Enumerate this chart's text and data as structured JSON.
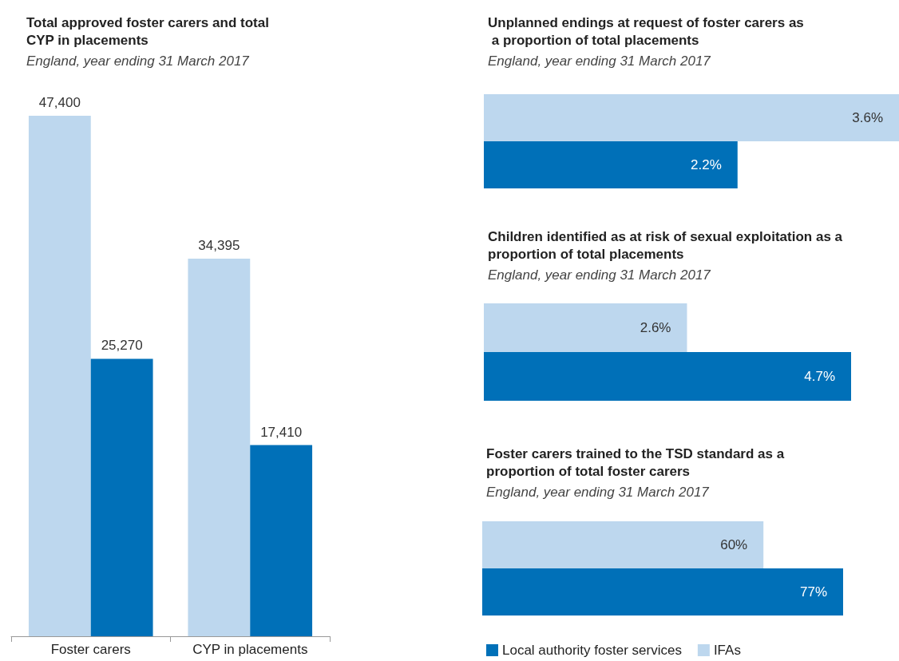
{
  "chart_data": [
    {
      "type": "bar",
      "title": "Total approved foster carers and total CYP in placements",
      "subtitle": "England, year ending 31 March 2017",
      "categories": [
        "Foster carers",
        "CYP in placements"
      ],
      "series": [
        {
          "color": "#bdd7ee",
          "values": [
            47400,
            34395
          ],
          "value_labels": [
            "47,400",
            "34,395"
          ]
        },
        {
          "color": "#0070b8",
          "values": [
            25270,
            17410
          ],
          "value_labels": [
            "25,270",
            "17,410"
          ]
        }
      ],
      "tick_labels": "x",
      "legend": false
    },
    {
      "type": "bar",
      "orientation": "horizontal",
      "title": "Unplanned endings at request of foster carers as a proportion of total placements",
      "subtitle": "England, year ending 31 March 2017",
      "categories": [
        null
      ],
      "series": [
        {
          "color": "#bdd7ee",
          "values": [
            3.6
          ],
          "value_labels": [
            "3.6%"
          ]
        },
        {
          "color": "#0070b8",
          "values": [
            2.2
          ],
          "value_labels": [
            "2.2%"
          ]
        }
      ],
      "tick_labels": false,
      "legend": false
    },
    {
      "type": "bar",
      "orientation": "horizontal",
      "title": "Children identified as at risk of sexual exploitation as a proportion of total placements",
      "subtitle": "England, year ending 31 March 2017",
      "categories": [
        null
      ],
      "series": [
        {
          "color": "#bdd7ee",
          "values": [
            2.6
          ],
          "value_labels": [
            "2.6%"
          ]
        },
        {
          "color": "#0070b8",
          "values": [
            4.7
          ],
          "value_labels": [
            "4.7%"
          ]
        }
      ],
      "tick_labels": false,
      "legend": false
    },
    {
      "type": "bar",
      "orientation": "horizontal",
      "title": "Foster carers trained to the TSD standard as a proportion of total foster carers",
      "subtitle": "England, year ending 31 March 2017",
      "categories": [
        null
      ],
      "series": [
        {
          "name": "IFAs",
          "color": "#bdd7ee",
          "values": [
            60
          ],
          "value_labels": [
            "60%"
          ]
        },
        {
          "name": "Local authority foster services",
          "color": "#0070b8",
          "values": [
            77
          ],
          "value_labels": [
            "77%"
          ]
        }
      ],
      "tick_labels": false,
      "legend": "bottom"
    }
  ]
}
